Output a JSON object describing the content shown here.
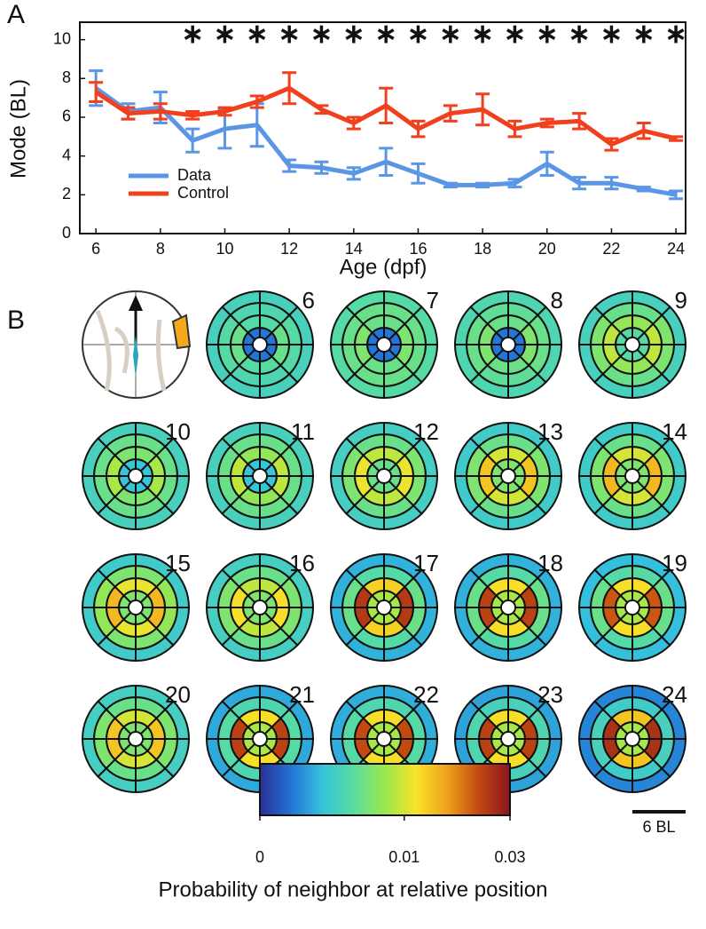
{
  "chart_data": [
    {
      "type": "line",
      "panel": "A",
      "x_label": "Age (dpf)",
      "y_label": "Mode (BL)",
      "x": [
        6,
        7,
        8,
        9,
        10,
        11,
        12,
        13,
        14,
        15,
        16,
        17,
        18,
        19,
        20,
        21,
        22,
        23,
        24
      ],
      "series": [
        {
          "name": "Data",
          "color": "#5b96e6",
          "values": [
            7.5,
            6.3,
            6.5,
            4.8,
            5.4,
            5.6,
            3.5,
            3.4,
            3.1,
            3.7,
            3.1,
            2.5,
            2.5,
            2.6,
            3.6,
            2.6,
            2.6,
            2.3,
            2.0
          ],
          "errors": [
            0.9,
            0.4,
            0.8,
            0.6,
            1.0,
            1.1,
            0.3,
            0.3,
            0.3,
            0.7,
            0.5,
            0.1,
            0.1,
            0.2,
            0.6,
            0.3,
            0.3,
            0.1,
            0.2
          ]
        },
        {
          "name": "Control",
          "color": "#f0401e",
          "values": [
            7.3,
            6.2,
            6.3,
            6.1,
            6.3,
            6.8,
            7.5,
            6.4,
            5.7,
            6.6,
            5.4,
            6.2,
            6.4,
            5.4,
            5.7,
            5.8,
            4.6,
            5.3,
            4.9
          ],
          "errors": [
            0.5,
            0.3,
            0.4,
            0.2,
            0.2,
            0.3,
            0.8,
            0.2,
            0.3,
            0.9,
            0.4,
            0.4,
            0.8,
            0.4,
            0.2,
            0.4,
            0.3,
            0.4,
            0.1
          ]
        }
      ],
      "significance": {
        "x": [
          9,
          10,
          11,
          12,
          13,
          14,
          15,
          16,
          17,
          18,
          19,
          20,
          21,
          22,
          23,
          24
        ],
        "label": "∗"
      },
      "xlim": [
        5.5,
        24.3
      ],
      "ylim": [
        0,
        10.9
      ],
      "xticks": [
        6,
        8,
        10,
        12,
        14,
        16,
        18,
        20,
        22,
        24
      ],
      "yticks": [
        0,
        2,
        4,
        6,
        8,
        10
      ],
      "legend": "lower left"
    },
    {
      "type": "polar_heatmap",
      "panel": "B",
      "scale_bar_label": "6 BL",
      "colorbar": {
        "label": "Probability of neighbor at relative position",
        "lim": [
          0,
          0.03
        ],
        "ticks": [
          0,
          0.01,
          0.03
        ],
        "scale": "sqrt",
        "colors": [
          "#2b2f94",
          "#2373d6",
          "#35c3dc",
          "#58dca0",
          "#9be84c",
          "#f7e32a",
          "#f0a01c",
          "#c24a10",
          "#8c1420"
        ]
      },
      "discs": [
        {
          "label": 6,
          "lateral": [
            0.0005,
            0.005,
            0.004,
            0.003
          ],
          "axial": [
            0.0005,
            0.004,
            0.0035,
            0.003
          ]
        },
        {
          "label": 7,
          "lateral": [
            0.0005,
            0.006,
            0.005,
            0.004
          ],
          "axial": [
            0.0005,
            0.005,
            0.005,
            0.004
          ]
        },
        {
          "label": 8,
          "lateral": [
            0.0005,
            0.006,
            0.005,
            0.0035
          ],
          "axial": [
            0.0005,
            0.005,
            0.0045,
            0.0035
          ]
        },
        {
          "label": 9,
          "lateral": [
            0.004,
            0.009,
            0.006,
            0.003
          ],
          "axial": [
            0.004,
            0.007,
            0.005,
            0.003
          ]
        },
        {
          "label": 10,
          "lateral": [
            0.002,
            0.008,
            0.005,
            0.003
          ],
          "axial": [
            0.002,
            0.006,
            0.005,
            0.003
          ]
        },
        {
          "label": 11,
          "lateral": [
            0.002,
            0.009,
            0.005,
            0.003
          ],
          "axial": [
            0.002,
            0.007,
            0.005,
            0.003
          ]
        },
        {
          "label": 12,
          "lateral": [
            0.005,
            0.011,
            0.006,
            0.0028
          ],
          "axial": [
            0.005,
            0.009,
            0.005,
            0.0028
          ]
        },
        {
          "label": 13,
          "lateral": [
            0.006,
            0.014,
            0.006,
            0.0025
          ],
          "axial": [
            0.006,
            0.01,
            0.005,
            0.0025
          ]
        },
        {
          "label": 14,
          "lateral": [
            0.006,
            0.015,
            0.006,
            0.0025
          ],
          "axial": [
            0.006,
            0.01,
            0.005,
            0.0025
          ]
        },
        {
          "label": 15,
          "lateral": [
            0.006,
            0.015,
            0.007,
            0.0025
          ],
          "axial": [
            0.006,
            0.011,
            0.006,
            0.0025
          ]
        },
        {
          "label": 16,
          "lateral": [
            0.006,
            0.012,
            0.006,
            0.0028
          ],
          "axial": [
            0.006,
            0.009,
            0.005,
            0.0028
          ]
        },
        {
          "label": 17,
          "lateral": [
            0.008,
            0.025,
            0.005,
            0.0015
          ],
          "axial": [
            0.008,
            0.013,
            0.004,
            0.0015
          ]
        },
        {
          "label": 18,
          "lateral": [
            0.008,
            0.024,
            0.005,
            0.0015
          ],
          "axial": [
            0.008,
            0.012,
            0.004,
            0.0015
          ]
        },
        {
          "label": 19,
          "lateral": [
            0.008,
            0.022,
            0.005,
            0.0018
          ],
          "axial": [
            0.008,
            0.012,
            0.004,
            0.0018
          ]
        },
        {
          "label": 20,
          "lateral": [
            0.006,
            0.014,
            0.006,
            0.0028
          ],
          "axial": [
            0.006,
            0.01,
            0.005,
            0.0028
          ]
        },
        {
          "label": 21,
          "lateral": [
            0.008,
            0.024,
            0.004,
            0.0013
          ],
          "axial": [
            0.008,
            0.012,
            0.0035,
            0.0013
          ]
        },
        {
          "label": 22,
          "lateral": [
            0.008,
            0.023,
            0.004,
            0.0014
          ],
          "axial": [
            0.008,
            0.012,
            0.0035,
            0.0014
          ]
        },
        {
          "label": 23,
          "lateral": [
            0.008,
            0.024,
            0.0035,
            0.0012
          ],
          "axial": [
            0.008,
            0.012,
            0.003,
            0.0012
          ]
        },
        {
          "label": 24,
          "lateral": [
            0.008,
            0.026,
            0.003,
            0.0007
          ],
          "axial": [
            0.008,
            0.014,
            0.0025,
            0.0007
          ]
        }
      ]
    }
  ]
}
